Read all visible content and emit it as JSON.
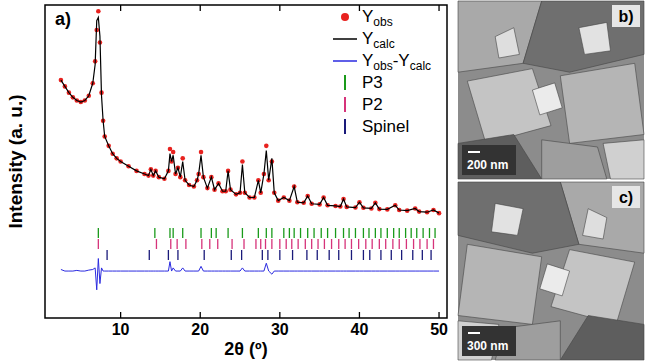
{
  "chart_data": {
    "type": "line",
    "panel": "a)",
    "x_label": "2θ (º)",
    "y_label": "Intensity (a. u.)",
    "xlim": [
      0.5,
      51
    ],
    "xticks": [
      10,
      20,
      30,
      40,
      50
    ],
    "ylim": [
      0,
      100
    ],
    "tick_labels": "x",
    "grid": false,
    "legend": "upper right",
    "x": [
      2.5,
      3,
      3.5,
      4,
      4.5,
      5,
      5.5,
      6,
      6.5,
      6.8,
      7,
      7.2,
      7.4,
      7.6,
      7.8,
      8,
      8.5,
      9,
      9.5,
      10,
      11,
      12,
      13,
      13.5,
      13.8,
      14.1,
      14.4,
      14.8,
      15.5,
      16,
      16.2,
      16.4,
      16.6,
      16.9,
      17.2,
      17.5,
      17.8,
      18.1,
      18.6,
      19.2,
      19.6,
      19.8,
      20.1,
      20.4,
      20.9,
      21.4,
      21.8,
      22.3,
      22.8,
      23.2,
      23.5,
      23.8,
      24.5,
      25,
      25.3,
      25.6,
      26.2,
      26.8,
      27.3,
      27.6,
      28,
      28.3,
      28.6,
      29,
      29.3,
      29.8,
      30.5,
      31.2,
      31.8,
      32.2,
      33,
      33.5,
      34,
      35,
      35.5,
      36,
      37,
      37.6,
      38,
      38.4,
      39.5,
      40,
      40.5,
      41.5,
      42,
      42.5,
      43.5,
      44.5,
      45,
      46,
      47,
      47.5,
      48.5,
      49.3,
      50
    ],
    "series": [
      {
        "name": "Yobs",
        "type": "scatter",
        "marker": "circle",
        "color": "#e8221f",
        "values": [
          76,
          74,
          72,
          70.5,
          69.5,
          69,
          69.5,
          71,
          75,
          82,
          92,
          98,
          88,
          72,
          63,
          58,
          55,
          52.5,
          51,
          50,
          48.5,
          47,
          46,
          45.5,
          47.5,
          45.5,
          47,
          45,
          44.5,
          47,
          54,
          50,
          53,
          46,
          48,
          45,
          51,
          44,
          42.5,
          42,
          44,
          46,
          53,
          45,
          41.5,
          45,
          41,
          43,
          40.5,
          40.5,
          47,
          41,
          39.5,
          40,
          50,
          40,
          38.5,
          38.5,
          44,
          40,
          46,
          55,
          44,
          50,
          40,
          37.5,
          38.5,
          37.5,
          42,
          37,
          36.8,
          39,
          36.5,
          36.3,
          38.5,
          36,
          35.8,
          35.6,
          38,
          35.5,
          35.3,
          37,
          35.2,
          35,
          36.8,
          34.8,
          34.7,
          36,
          34.5,
          34.3,
          35,
          34,
          33.8,
          34.5,
          33.5
        ]
      },
      {
        "name": "Ycalc",
        "type": "line",
        "color": "#000000",
        "values": [
          76,
          74,
          72,
          70.5,
          69.5,
          69,
          69.5,
          71,
          75,
          81,
          95,
          96,
          90,
          71,
          63,
          58,
          55,
          52.5,
          51,
          50,
          48.5,
          47,
          46,
          45.5,
          47.5,
          45.5,
          47,
          45,
          44.5,
          47,
          52.5,
          50,
          52,
          46,
          48,
          45,
          50,
          44,
          42.5,
          42,
          44,
          46,
          52,
          45,
          41.5,
          45,
          41,
          43,
          40.5,
          40.5,
          47,
          41,
          39.5,
          40,
          49,
          40,
          38.5,
          38.5,
          44,
          40,
          46,
          53.5,
          44,
          51,
          40,
          37.5,
          38.5,
          37.5,
          42,
          37,
          36.8,
          39,
          36.5,
          36.3,
          38.5,
          36,
          35.8,
          35.6,
          38,
          35.5,
          35.3,
          37,
          35.2,
          35,
          36.8,
          34.8,
          34.7,
          36,
          34.5,
          34.3,
          35,
          34,
          33.8,
          34.5,
          33.5
        ]
      },
      {
        "name": "Yobs-Ycalc",
        "type": "line",
        "color": "#2a2ae0",
        "values": [
          15.5,
          15,
          15,
          15,
          15.2,
          15,
          15,
          15.3,
          15.5,
          16,
          9,
          19,
          11,
          16,
          15,
          15,
          15,
          15,
          15,
          15,
          15,
          15,
          15,
          15,
          15,
          15,
          15,
          15,
          15,
          15,
          18,
          15,
          16,
          15,
          15,
          15,
          16,
          15,
          15,
          15,
          15,
          15,
          16.5,
          15,
          15,
          15,
          15,
          15,
          15,
          15,
          15,
          15,
          15,
          15,
          16,
          15,
          15,
          15,
          15,
          15,
          15,
          17.5,
          15,
          14,
          15,
          15,
          15,
          15,
          15,
          15,
          15,
          15,
          15,
          15,
          15,
          15,
          15,
          15,
          15,
          15,
          15,
          15,
          15,
          15,
          15,
          15,
          15,
          15,
          15,
          15,
          15,
          15,
          15,
          15,
          15
        ]
      },
      {
        "name": "P3",
        "type": "ticks",
        "color": "#1a9a1a",
        "x": [
          7.2,
          14.3,
          16.2,
          16.6,
          17.8,
          20.1,
          21.4,
          22,
          23.5,
          25.3,
          27.3,
          28.3,
          29,
          30.5,
          31.2,
          31.8,
          32.6,
          33.5,
          34.3,
          35.2,
          36,
          37,
          38,
          38.7,
          39.5,
          40.5,
          41.2,
          42,
          42.7,
          43.5,
          44.3,
          45,
          45.8,
          46.5,
          47.2,
          48,
          48.8,
          49.5
        ]
      },
      {
        "name": "P2",
        "type": "ticks",
        "color": "#d6337a",
        "x": [
          7.2,
          14.5,
          16.3,
          17.1,
          18.2,
          20.2,
          21.2,
          22.2,
          24,
          25.5,
          27,
          27.6,
          28.2,
          29,
          30,
          30.8,
          31.5,
          32.3,
          33.2,
          34,
          34.8,
          35.6,
          36.5,
          37.4,
          38.2,
          39,
          39.9,
          40.8,
          41.6,
          42.5,
          43.3,
          44.2,
          45,
          45.9,
          46.8,
          47.6,
          48.5,
          49.3
        ]
      },
      {
        "name": "Spinel",
        "type": "ticks",
        "color": "#1a1a7a",
        "x": [
          8.3,
          13.6,
          16,
          17.2,
          20.5,
          23.9,
          25.2,
          27.8,
          28.5,
          30,
          31.6,
          33.4,
          34.7,
          36.2,
          37.4,
          39,
          40.5,
          41.3,
          42.7,
          44,
          45.3,
          46.7,
          47.9,
          49
        ]
      }
    ]
  },
  "images": [
    {
      "label": "b)",
      "scale_bar": "200 nm"
    },
    {
      "label": "c)",
      "scale_bar": "300 nm"
    }
  ]
}
